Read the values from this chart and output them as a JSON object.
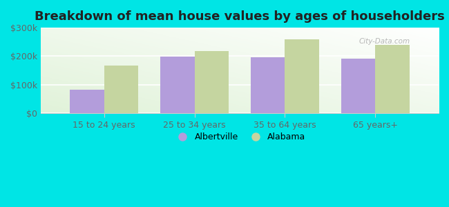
{
  "title": "Breakdown of mean house values by ages of householders",
  "categories": [
    "15 to 24 years",
    "25 to 34 years",
    "35 to 64 years",
    "65 years+"
  ],
  "albertville_values": [
    82000,
    198000,
    196000,
    192000
  ],
  "alabama_values": [
    168000,
    218000,
    258000,
    240000
  ],
  "albertville_color": "#b39ddb",
  "alabama_color": "#c5d5a0",
  "background_color": "#00e5e5",
  "ylim": [
    0,
    300000
  ],
  "yticks": [
    0,
    100000,
    200000,
    300000
  ],
  "ytick_labels": [
    "$0",
    "$100k",
    "$200k",
    "$300k"
  ],
  "bar_width": 0.38,
  "legend_labels": [
    "Albertville",
    "Alabama"
  ],
  "title_fontsize": 13,
  "tick_fontsize": 9,
  "legend_fontsize": 9,
  "watermark": "City-Data.com"
}
